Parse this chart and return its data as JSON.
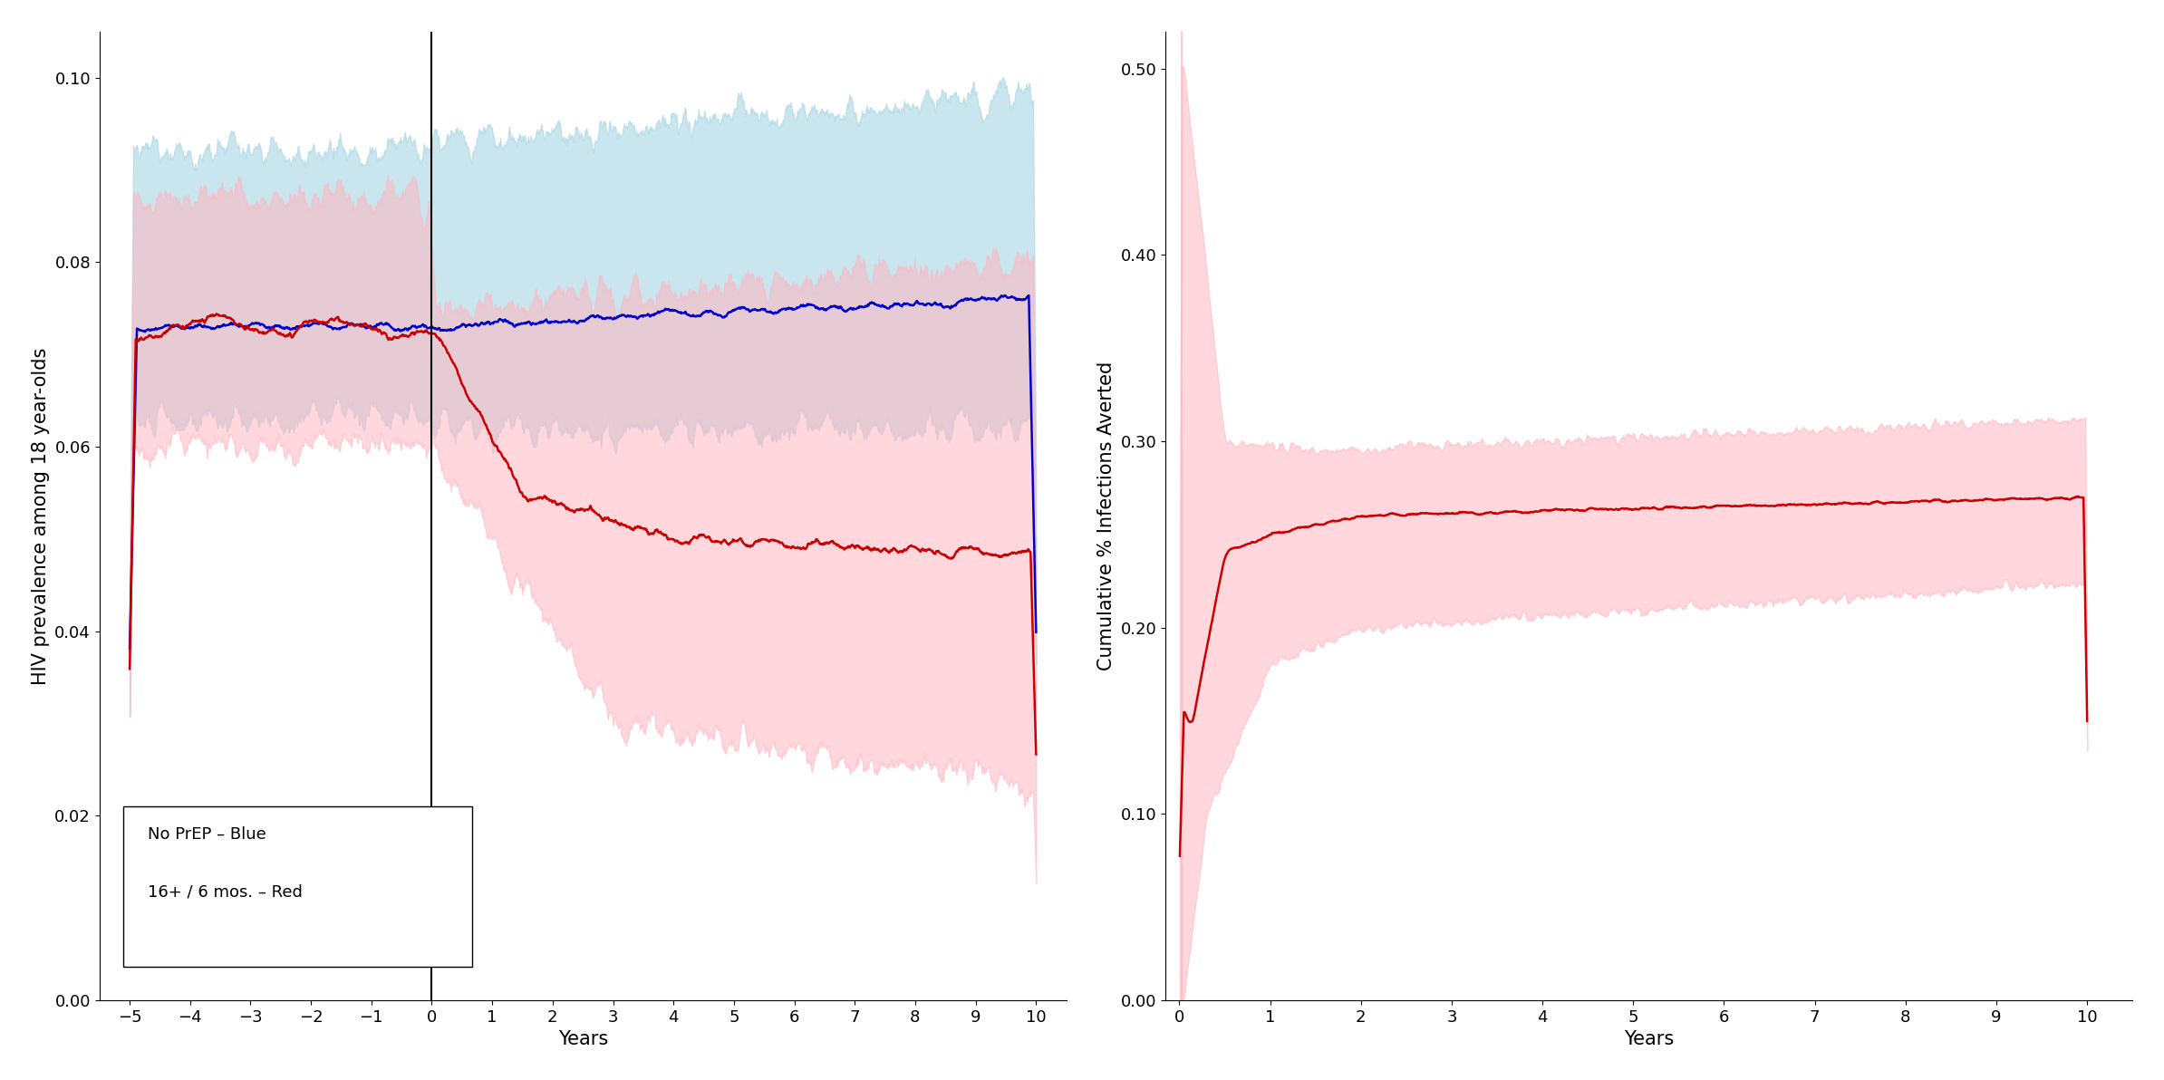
{
  "left_plot": {
    "xlabel": "Years",
    "ylabel": "HIV prevalence among 18 year-olds",
    "xlim": [
      -5.5,
      10.5
    ],
    "ylim": [
      0.0,
      0.105
    ],
    "yticks": [
      0.0,
      0.02,
      0.04,
      0.06,
      0.08,
      0.1
    ],
    "xticks": [
      -5,
      -4,
      -3,
      -2,
      -1,
      0,
      1,
      2,
      3,
      4,
      5,
      6,
      7,
      8,
      9,
      10
    ],
    "vline_x": 0,
    "blue_line_color": "#0000CC",
    "red_line_color": "#CC0000",
    "blue_band_color": "#ADD8E6",
    "red_band_color": "#FFB6C1",
    "blue_band_alpha": 0.65,
    "red_band_alpha": 0.55,
    "legend_text": [
      "No PrEP – Blue",
      "16+ / 6 mos. – Red"
    ]
  },
  "right_plot": {
    "xlabel": "Years",
    "ylabel": "Cumulative % Infections Averted",
    "xlim": [
      -0.15,
      10.5
    ],
    "ylim": [
      0.0,
      0.52
    ],
    "yticks": [
      0.0,
      0.1,
      0.2,
      0.3,
      0.4,
      0.5
    ],
    "xticks": [
      0,
      1,
      2,
      3,
      4,
      5,
      6,
      7,
      8,
      9,
      10
    ],
    "red_line_color": "#CC0000",
    "red_band_color": "#FFB6C1",
    "red_band_alpha": 0.55
  },
  "fig_width": 23.88,
  "fig_height": 11.92,
  "dpi": 100
}
